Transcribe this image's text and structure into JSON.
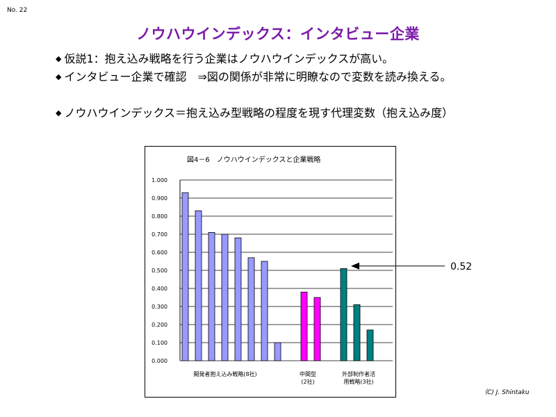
{
  "slide_number": "No. 22",
  "title": "ノウハウインデックス：インタビュー企業",
  "bullets": [
    "仮説1：抱え込み戦略を行う企業はノウハウインデックスが高い。",
    "インタビュー企業で確認　⇒図の関係が非常に明瞭なので変数を読み換える。",
    "ノウハウインデックス＝抱え込み型戦略の程度を現す代理変数（抱え込み度）"
  ],
  "bullet_icon": "diamond-bullet-icon",
  "callout": {
    "value_label": "0.52",
    "icon": "arrow-left-icon"
  },
  "credit": "（C)  J. Shintaku",
  "colors": {
    "title": "#7a1aa8",
    "developer": "#9999ff",
    "middle": "#ff00ff",
    "outsourcing": "#008080"
  },
  "chart_data": {
    "type": "bar",
    "title": "図4－6　ノウハウインデックスと企業戦略",
    "ylim": [
      0,
      1.0
    ],
    "yticks": [
      "1.000",
      "0.900",
      "0.800",
      "0.700",
      "0.600",
      "0.500",
      "0.400",
      "0.300",
      "0.200",
      "0.100",
      "0.000"
    ],
    "grid": true,
    "series": [
      {
        "name": "開発者抱え込み戦略(8社)",
        "color": "#9999ff",
        "values": [
          0.93,
          0.83,
          0.71,
          0.7,
          0.68,
          0.57,
          0.55,
          0.1
        ]
      },
      {
        "name": "中間型\n(2社)",
        "color": "#ff00ff",
        "values": [
          0.38,
          0.35
        ]
      },
      {
        "name": "外部制作者活\n用戦略(3社)",
        "color": "#008080",
        "values": [
          0.51,
          0.31,
          0.17
        ]
      }
    ]
  }
}
